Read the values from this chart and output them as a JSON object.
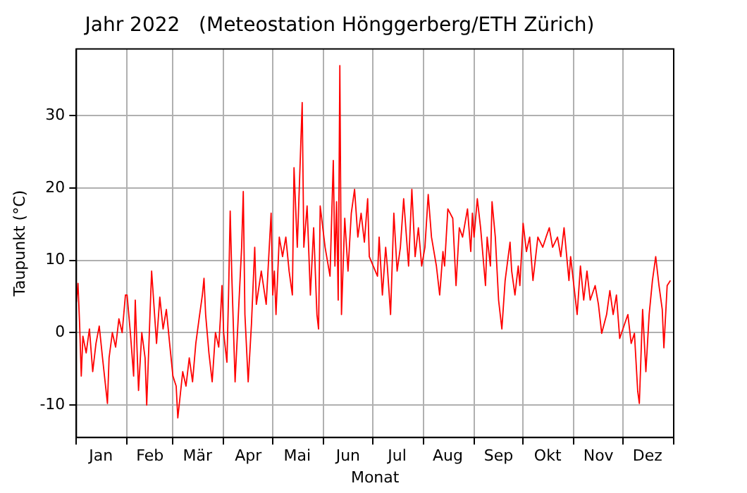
{
  "chart_data": {
    "type": "line",
    "title": "Jahr 2022   (Meteostation Hönggerberg/ETH Zürich)",
    "xlabel": "Monat",
    "ylabel": "Taupunkt (°C)",
    "x": [
      "2022-01-01",
      "2022-01-02",
      "2022-01-03",
      "2022-01-04",
      "2022-01-05",
      "2022-01-07",
      "2022-01-09",
      "2022-01-11",
      "2022-01-13",
      "2022-01-15",
      "2022-01-17",
      "2022-01-20",
      "2022-01-21",
      "2022-01-23",
      "2022-01-25",
      "2022-01-27",
      "2022-01-29",
      "2022-01-31",
      "2022-02-01",
      "2022-02-03",
      "2022-02-05",
      "2022-02-06",
      "2022-02-08",
      "2022-02-10",
      "2022-02-12",
      "2022-02-13",
      "2022-02-15",
      "2022-02-16",
      "2022-02-19",
      "2022-02-21",
      "2022-02-23",
      "2022-02-25",
      "2022-02-27",
      "2022-03-01",
      "2022-03-03",
      "2022-03-04",
      "2022-03-07",
      "2022-03-09",
      "2022-03-11",
      "2022-03-13",
      "2022-03-15",
      "2022-03-17",
      "2022-03-19",
      "2022-03-20",
      "2022-03-21",
      "2022-03-23",
      "2022-03-25",
      "2022-03-27",
      "2022-03-29",
      "2022-03-30",
      "2022-03-31",
      "2022-04-01",
      "2022-04-03",
      "2022-04-04",
      "2022-04-05",
      "2022-04-06",
      "2022-04-08",
      "2022-04-10",
      "2022-04-12",
      "2022-04-13",
      "2022-04-14",
      "2022-04-16",
      "2022-04-18",
      "2022-04-20",
      "2022-04-21",
      "2022-04-24",
      "2022-04-27",
      "2022-04-30",
      "2022-05-01",
      "2022-05-02",
      "2022-05-03",
      "2022-05-05",
      "2022-05-07",
      "2022-05-09",
      "2022-05-11",
      "2022-05-13",
      "2022-05-14",
      "2022-05-16",
      "2022-05-19",
      "2022-05-20",
      "2022-05-22",
      "2022-05-24",
      "2022-05-26",
      "2022-05-28",
      "2022-05-29",
      "2022-05-30",
      "2022-06-02",
      "2022-06-05",
      "2022-06-07",
      "2022-06-08",
      "2022-06-09",
      "2022-06-10",
      "2022-06-11",
      "2022-06-12",
      "2022-06-14",
      "2022-06-16",
      "2022-06-18",
      "2022-06-20",
      "2022-06-22",
      "2022-06-24",
      "2022-06-26",
      "2022-06-28",
      "2022-06-29",
      "2022-07-04",
      "2022-07-05",
      "2022-07-07",
      "2022-07-09",
      "2022-07-10",
      "2022-07-12",
      "2022-07-14",
      "2022-07-16",
      "2022-07-18",
      "2022-07-20",
      "2022-07-23",
      "2022-07-25",
      "2022-07-27",
      "2022-07-29",
      "2022-07-31",
      "2022-08-02",
      "2022-08-04",
      "2022-08-06",
      "2022-08-09",
      "2022-08-11",
      "2022-08-13",
      "2022-08-14",
      "2022-08-16",
      "2022-08-19",
      "2022-08-21",
      "2022-08-23",
      "2022-08-25",
      "2022-08-28",
      "2022-08-30",
      "2022-08-31",
      "2022-09-01",
      "2022-09-03",
      "2022-09-05",
      "2022-09-08",
      "2022-09-09",
      "2022-09-11",
      "2022-09-12",
      "2022-09-14",
      "2022-09-16",
      "2022-09-18",
      "2022-09-20",
      "2022-09-23",
      "2022-09-24",
      "2022-09-26",
      "2022-09-28",
      "2022-09-29",
      "2022-10-01",
      "2022-10-03",
      "2022-10-05",
      "2022-10-07",
      "2022-10-10",
      "2022-10-13",
      "2022-10-15",
      "2022-10-17",
      "2022-10-19",
      "2022-10-22",
      "2022-10-24",
      "2022-10-26",
      "2022-10-29",
      "2022-10-30",
      "2022-11-01",
      "2022-11-03",
      "2022-11-05",
      "2022-11-07",
      "2022-11-09",
      "2022-11-11",
      "2022-11-14",
      "2022-11-16",
      "2022-11-18",
      "2022-11-21",
      "2022-11-23",
      "2022-11-25",
      "2022-11-27",
      "2022-11-29",
      "2022-12-02",
      "2022-12-04",
      "2022-12-06",
      "2022-12-08",
      "2022-12-10",
      "2022-12-11",
      "2022-12-13",
      "2022-12-15",
      "2022-12-17",
      "2022-12-19",
      "2022-12-21",
      "2022-12-23",
      "2022-12-25",
      "2022-12-26",
      "2022-12-28",
      "2022-12-30"
    ],
    "series": [
      {
        "color": "#ff0000",
        "values": [
          4.2,
          6.8,
          1.2,
          -6,
          -0.5,
          -2.8,
          0.5,
          -5.4,
          -1.5,
          0.9,
          -3.5,
          -9.8,
          -3.5,
          0,
          -2,
          1.9,
          0,
          5.2,
          5.2,
          0,
          -6,
          4.5,
          -8,
          0,
          -3.5,
          -10,
          2.5,
          8.5,
          -1.5,
          4.9,
          0.5,
          3.2,
          -1.5,
          -6,
          -7.4,
          -11.8,
          -5.4,
          -7.4,
          -3.5,
          -6.8,
          -1.5,
          1.9,
          5.2,
          7.5,
          2.5,
          -2.8,
          -6.8,
          0,
          -2,
          1.9,
          6.5,
          0,
          -4.1,
          5.2,
          16.8,
          7.8,
          -6.8,
          2.5,
          11.8,
          19.5,
          2.5,
          -6.8,
          1.2,
          11.8,
          3.9,
          8.5,
          3.9,
          16.5,
          5.2,
          8.5,
          2.5,
          13.2,
          10.5,
          13.2,
          8.5,
          5.2,
          22.8,
          11.8,
          31.8,
          11.8,
          17.5,
          5.2,
          14.5,
          2.5,
          0.5,
          17.5,
          11.8,
          7.8,
          23.8,
          9.2,
          18.1,
          4.5,
          36.9,
          2.5,
          15.8,
          8.5,
          16.5,
          19.8,
          13.2,
          16.5,
          12.5,
          18.5,
          10.5,
          7.8,
          13.2,
          5.2,
          11.8,
          9.2,
          2.5,
          16.5,
          8.5,
          11.8,
          18.5,
          9.2,
          19.8,
          10.5,
          14.5,
          9.2,
          11.8,
          19.1,
          13.2,
          9.2,
          5.2,
          11.2,
          9.2,
          17.1,
          15.8,
          6.5,
          14.5,
          13.2,
          17.1,
          11.2,
          16.5,
          13.2,
          18.5,
          14.5,
          6.5,
          13.2,
          9.2,
          18.1,
          13.2,
          4.5,
          0.5,
          7.2,
          12.5,
          8.5,
          5.2,
          9.2,
          6.5,
          15.1,
          11.2,
          13.2,
          7.2,
          13.2,
          11.8,
          13.2,
          14.5,
          11.8,
          13.2,
          10.5,
          14.5,
          7.2,
          10.5,
          6.5,
          2.5,
          9.2,
          4.5,
          8.5,
          4.5,
          6.5,
          3.9,
          -0.1,
          2.5,
          5.8,
          2.5,
          5.2,
          -0.8,
          1.2,
          2.5,
          -1.5,
          -0.1,
          -8.1,
          -9.8,
          3.2,
          -5.4,
          2.5,
          7.2,
          10.5,
          6.5,
          3.2,
          -2.1,
          6.5,
          7.2
        ]
      }
    ],
    "xlim": [
      "2022-01-01",
      "2023-01-01"
    ],
    "xticks": [
      {
        "value": "2022-01-01",
        "label": null
      },
      {
        "value": "2022-01-16",
        "label": "Jan"
      },
      {
        "value": "2022-02-01",
        "label": null
      },
      {
        "value": "2022-02-15",
        "label": "Feb"
      },
      {
        "value": "2022-03-01",
        "label": null
      },
      {
        "value": "2022-03-16",
        "label": "Mär"
      },
      {
        "value": "2022-04-01",
        "label": null
      },
      {
        "value": "2022-04-16",
        "label": "Apr"
      },
      {
        "value": "2022-05-01",
        "label": null
      },
      {
        "value": "2022-05-16",
        "label": "Mai"
      },
      {
        "value": "2022-06-01",
        "label": null
      },
      {
        "value": "2022-06-16",
        "label": "Jun"
      },
      {
        "value": "2022-07-01",
        "label": null
      },
      {
        "value": "2022-07-16",
        "label": "Jul"
      },
      {
        "value": "2022-08-01",
        "label": null
      },
      {
        "value": "2022-08-16",
        "label": "Aug"
      },
      {
        "value": "2022-09-01",
        "label": null
      },
      {
        "value": "2022-09-16",
        "label": "Sep"
      },
      {
        "value": "2022-10-01",
        "label": null
      },
      {
        "value": "2022-10-16",
        "label": "Okt"
      },
      {
        "value": "2022-11-01",
        "label": null
      },
      {
        "value": "2022-11-16",
        "label": "Nov"
      },
      {
        "value": "2022-12-01",
        "label": null
      },
      {
        "value": "2022-12-16",
        "label": "Dez"
      },
      {
        "value": "2023-01-01",
        "label": null
      }
    ],
    "ylim": [
      -14.5,
      39.2
    ],
    "yticks": [
      -10,
      0,
      10,
      20,
      30
    ],
    "grid": true
  }
}
